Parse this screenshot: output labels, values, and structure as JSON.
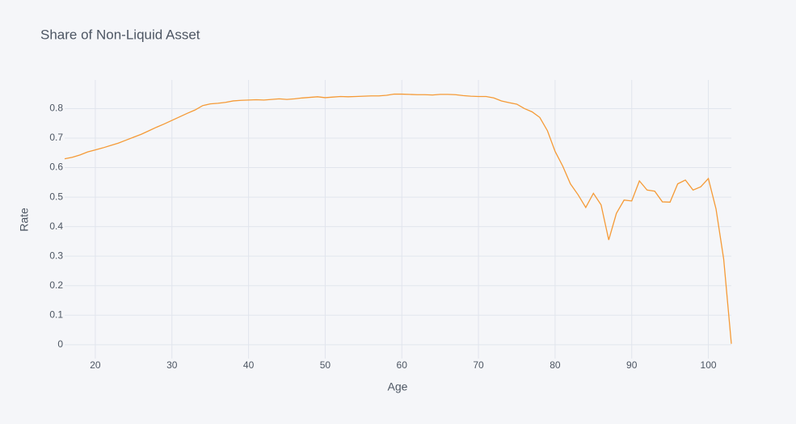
{
  "chart_data": {
    "type": "line",
    "title": "Share of Non-Liquid Asset",
    "x_label": "Age",
    "y_label": "Rate",
    "x": [
      16,
      17,
      18,
      19,
      20,
      21,
      22,
      23,
      24,
      25,
      26,
      27,
      28,
      29,
      30,
      31,
      32,
      33,
      34,
      35,
      36,
      37,
      38,
      39,
      40,
      41,
      42,
      43,
      44,
      45,
      46,
      47,
      48,
      49,
      50,
      51,
      52,
      53,
      54,
      55,
      56,
      57,
      58,
      59,
      60,
      61,
      62,
      63,
      64,
      65,
      66,
      67,
      68,
      69,
      70,
      71,
      72,
      73,
      74,
      75,
      76,
      77,
      78,
      79,
      80,
      81,
      82,
      83,
      84,
      85,
      86,
      87,
      88,
      89,
      90,
      91,
      92,
      93,
      94,
      95,
      96,
      97,
      98,
      99,
      100,
      101,
      102,
      103
    ],
    "values": [
      0.63,
      0.635,
      0.643,
      0.653,
      0.66,
      0.667,
      0.675,
      0.683,
      0.693,
      0.703,
      0.713,
      0.725,
      0.737,
      0.748,
      0.76,
      0.772,
      0.784,
      0.795,
      0.81,
      0.816,
      0.818,
      0.821,
      0.826,
      0.828,
      0.829,
      0.83,
      0.829,
      0.831,
      0.833,
      0.831,
      0.833,
      0.836,
      0.838,
      0.84,
      0.837,
      0.839,
      0.841,
      0.84,
      0.841,
      0.842,
      0.843,
      0.843,
      0.845,
      0.849,
      0.849,
      0.848,
      0.847,
      0.847,
      0.846,
      0.848,
      0.848,
      0.847,
      0.844,
      0.842,
      0.841,
      0.841,
      0.836,
      0.826,
      0.82,
      0.815,
      0.8,
      0.789,
      0.77,
      0.725,
      0.655,
      0.605,
      0.545,
      0.508,
      0.465,
      0.513,
      0.474,
      0.355,
      0.445,
      0.49,
      0.487,
      0.555,
      0.524,
      0.52,
      0.484,
      0.483,
      0.545,
      0.558,
      0.524,
      0.535,
      0.563,
      0.46,
      0.29,
      0.003
    ],
    "color": "#f59a36",
    "xlim": [
      16,
      103
    ],
    "xticks": [
      20,
      30,
      40,
      50,
      60,
      70,
      80,
      90,
      100
    ],
    "ylim": [
      -0.047,
      0.897
    ],
    "yticks": [
      0,
      0.1,
      0.2,
      0.3,
      0.4,
      0.5,
      0.6,
      0.7,
      0.8
    ],
    "grid": true
  }
}
